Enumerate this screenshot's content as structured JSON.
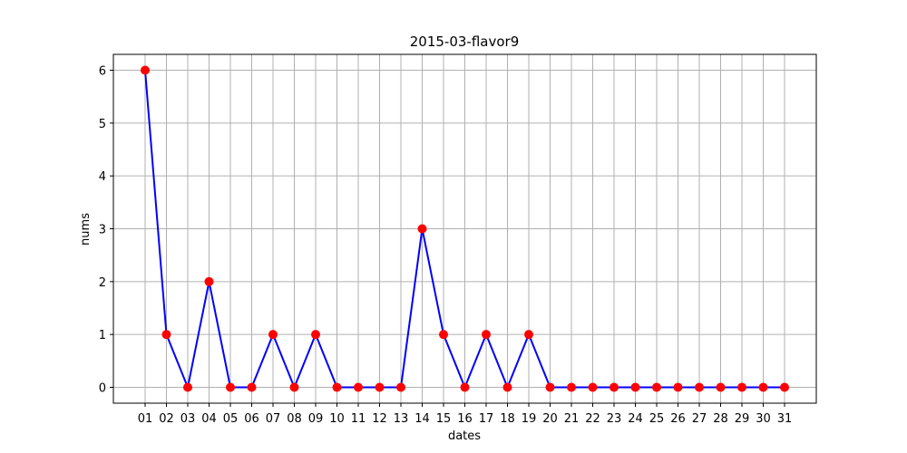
{
  "chart_data": {
    "type": "line",
    "title": "2015-03-flavor9",
    "xlabel": "dates",
    "ylabel": "nums",
    "categories": [
      "01",
      "02",
      "03",
      "04",
      "05",
      "06",
      "07",
      "08",
      "09",
      "10",
      "11",
      "12",
      "13",
      "14",
      "15",
      "16",
      "17",
      "18",
      "19",
      "20",
      "21",
      "22",
      "23",
      "24",
      "25",
      "26",
      "27",
      "28",
      "29",
      "30",
      "31"
    ],
    "series": [
      {
        "values": [
          6,
          1,
          0,
          2,
          0,
          0,
          1,
          0,
          1,
          0,
          0,
          0,
          0,
          3,
          1,
          0,
          1,
          0,
          1,
          0,
          0,
          0,
          0,
          0,
          0,
          0,
          0,
          0,
          0,
          0,
          0
        ],
        "line_color": "#0000ff",
        "marker_color": "#ff0000"
      }
    ],
    "yticks": [
      0,
      1,
      2,
      3,
      4,
      5,
      6
    ],
    "ylim": [
      -0.3,
      6.3
    ],
    "grid": true
  }
}
